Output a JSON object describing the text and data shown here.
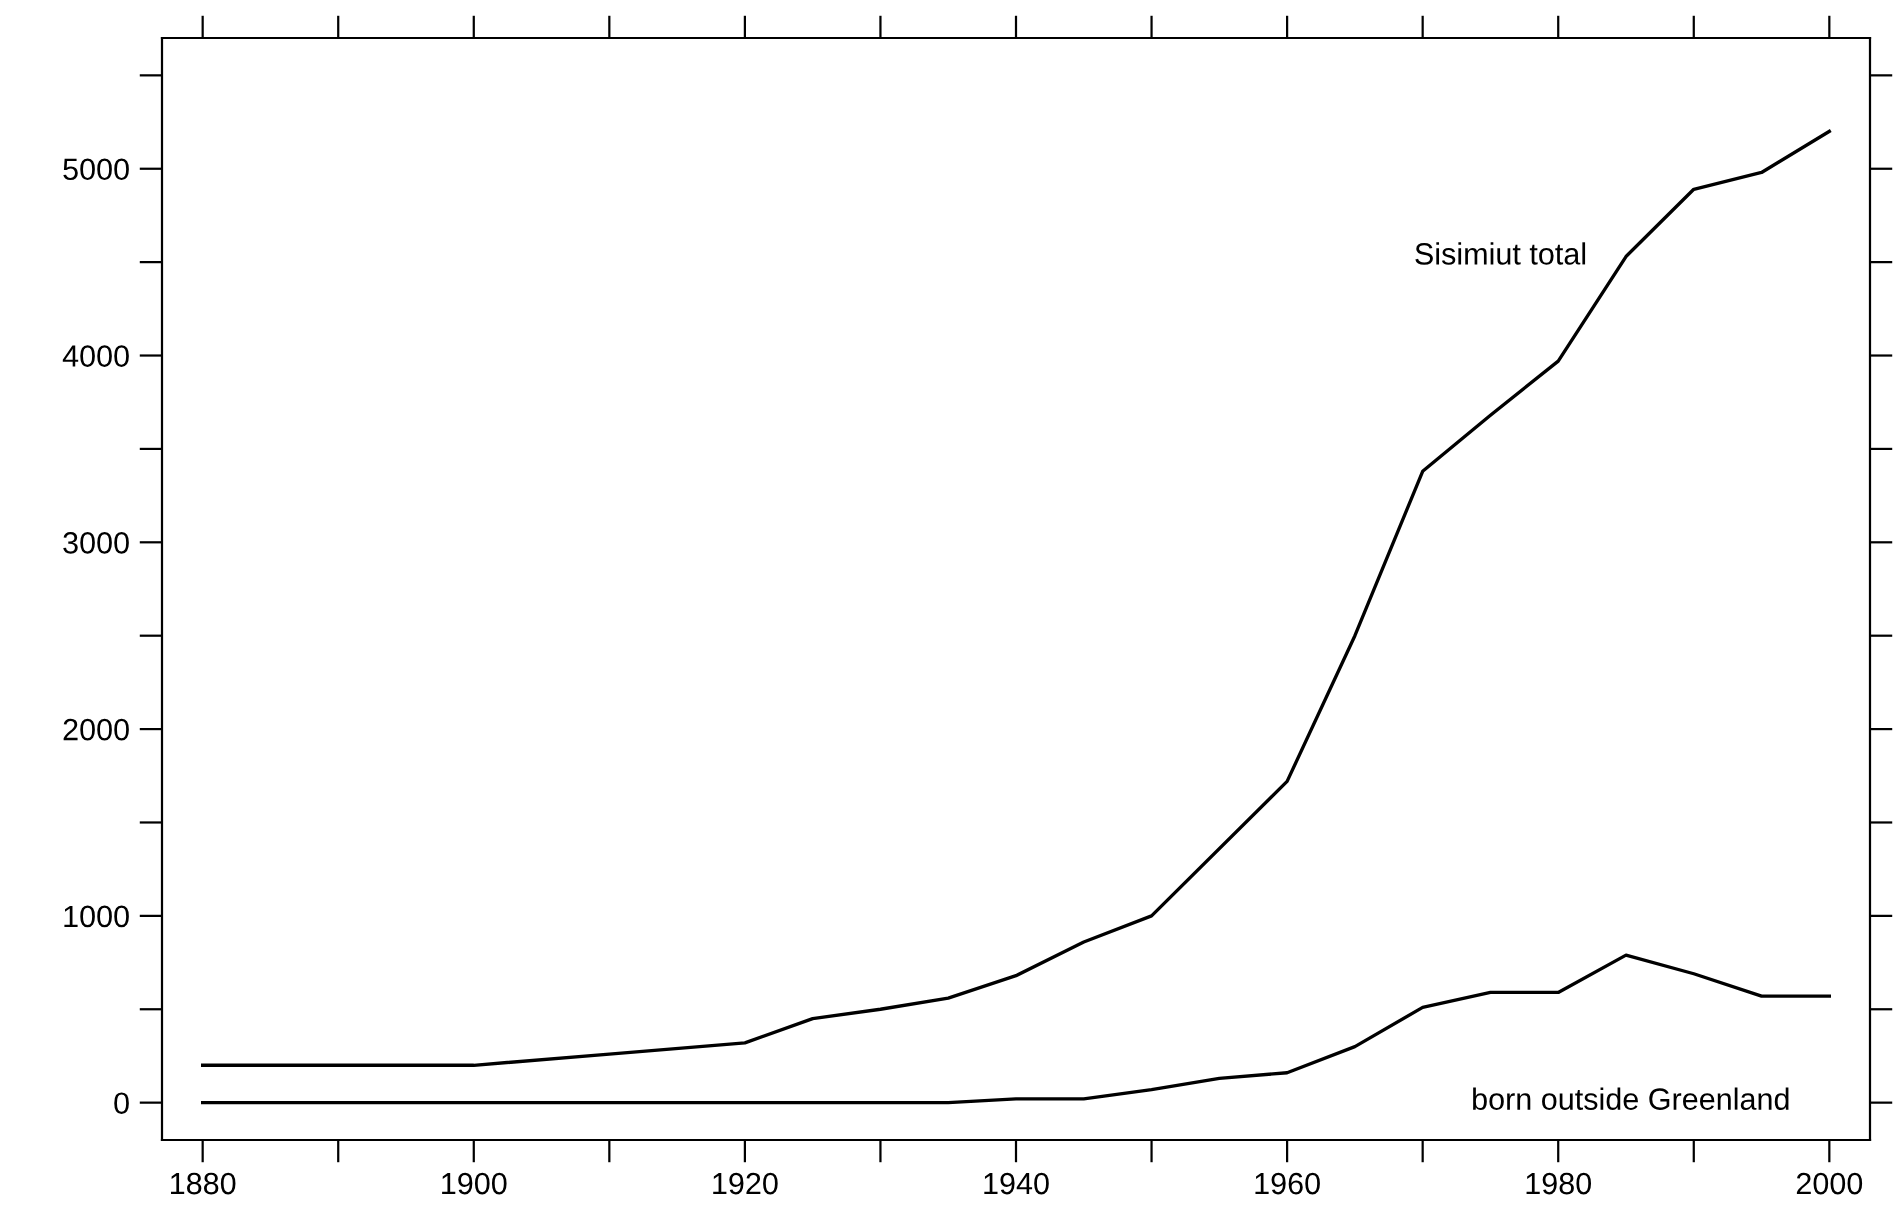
{
  "chart_data": {
    "type": "line",
    "series": [
      {
        "name": "Sisimiut total",
        "color": "#000000",
        "x": [
          1880,
          1900,
          1910,
          1920,
          1925,
          1930,
          1935,
          1940,
          1945,
          1950,
          1960,
          1965,
          1970,
          1975,
          1980,
          1985,
          1990,
          1995,
          2000
        ],
        "values": [
          200,
          200,
          260,
          320,
          450,
          500,
          560,
          680,
          860,
          1000,
          1720,
          2500,
          3380,
          3680,
          3970,
          4530,
          4890,
          4980,
          5200
        ]
      },
      {
        "name": "born outside Greenland",
        "color": "#000000",
        "x": [
          1880,
          1935,
          1940,
          1945,
          1950,
          1955,
          1960,
          1965,
          1970,
          1975,
          1980,
          1985,
          1990,
          1995,
          2000
        ],
        "values": [
          0,
          0,
          20,
          20,
          70,
          130,
          160,
          300,
          510,
          590,
          590,
          790,
          690,
          570,
          570
        ]
      }
    ],
    "xlim": [
      1877,
      2003
    ],
    "ylim": [
      -200,
      5700
    ],
    "xticks": [
      1880,
      {
        "value": 1890,
        "label": null
      },
      1900,
      {
        "value": 1910,
        "label": null
      },
      1920,
      {
        "value": 1930,
        "label": null
      },
      1940,
      {
        "value": 1950,
        "label": null
      },
      1960,
      {
        "value": 1970,
        "label": null
      },
      1980,
      {
        "value": 1990,
        "label": null
      },
      2000
    ],
    "yticks": [
      0,
      {
        "value": 500,
        "label": null
      },
      1000,
      {
        "value": 1500,
        "label": null
      },
      2000,
      {
        "value": 2500,
        "label": null
      },
      3000,
      {
        "value": 3500,
        "label": null
      },
      4000,
      {
        "value": 4500,
        "label": null
      },
      5000,
      {
        "value": 5500,
        "label": null
      }
    ],
    "grid": false,
    "legend": false,
    "marker": "none",
    "line_style": "solid"
  }
}
